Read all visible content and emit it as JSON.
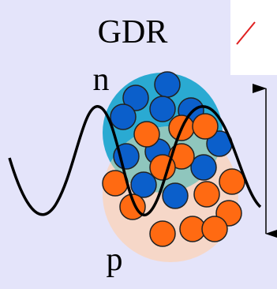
{
  "labels": {
    "title": "GDR",
    "neutron": "n",
    "proton": "p"
  }
}
